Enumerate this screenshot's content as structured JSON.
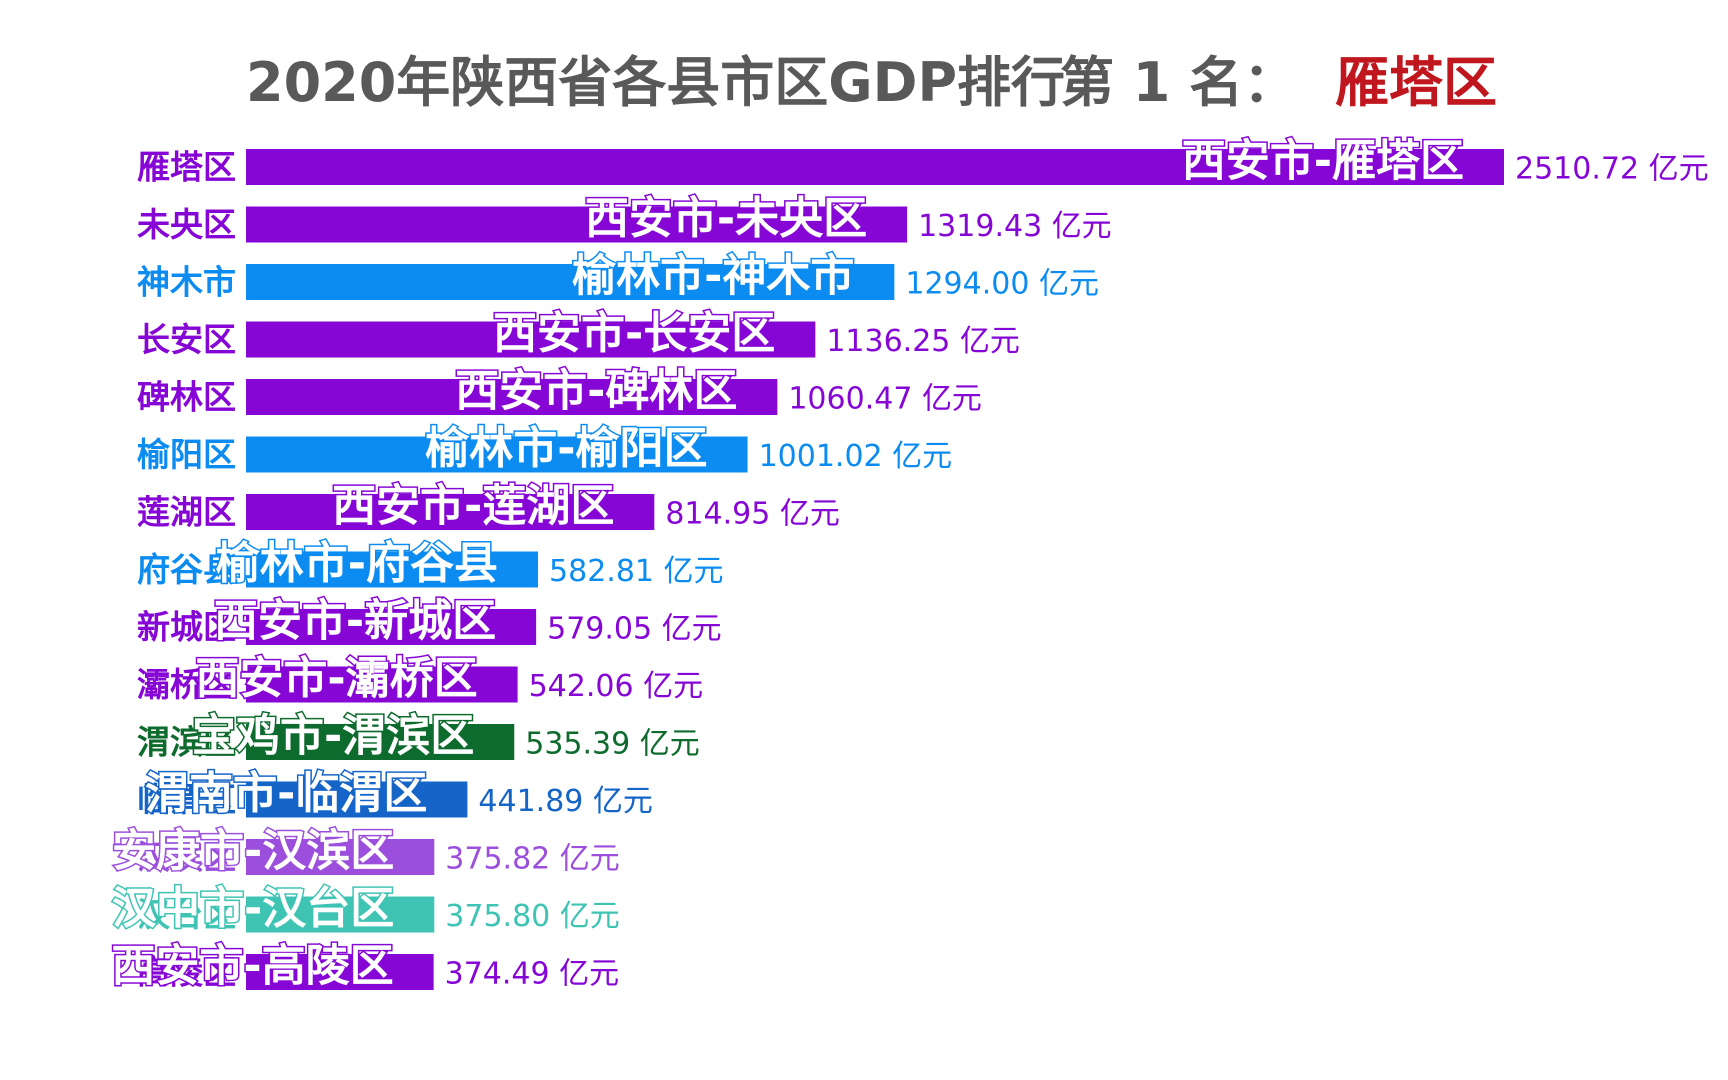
{
  "title": {
    "main": "2020年陕西省各县市区GDP排行",
    "rank": "第 1 名：",
    "current": "雁塔区"
  },
  "value_unit": "亿元",
  "colors": {
    "title": "#595959",
    "highlight": "#c0171e"
  },
  "chart_data": {
    "type": "bar",
    "orientation": "horizontal",
    "categories": [
      "雁塔区",
      "未央区",
      "神木市",
      "长安区",
      "碑林区",
      "榆阳区",
      "莲湖区",
      "府谷县",
      "新城区",
      "灞桥区",
      "渭滨区",
      "临渭区",
      "汉滨区",
      "汉台区",
      "高陵区"
    ],
    "bar_labels": [
      "西安市-雁塔区",
      "西安市-未央区",
      "榆林市-神木市",
      "西安市-长安区",
      "西安市-碑林区",
      "榆林市-榆阳区",
      "西安市-莲湖区",
      "榆林市-府谷县",
      "西安市-新城区",
      "西安市-灞桥区",
      "宝鸡市-渭滨区",
      "渭南市-临渭区",
      "安康市-汉滨区",
      "汉中市-汉台区",
      "西安市-高陵区"
    ],
    "values": [
      2510.72,
      1319.43,
      1294.0,
      1136.25,
      1060.47,
      1001.02,
      814.95,
      582.81,
      579.05,
      542.06,
      535.39,
      441.89,
      375.82,
      375.8,
      374.49
    ],
    "value_labels": [
      "2510.72 亿元",
      "1319.43 亿元",
      "1294.00 亿元",
      "1136.25 亿元",
      "1060.47 亿元",
      "1001.02 亿元",
      "814.95 亿元",
      "582.81 亿元",
      "579.05 亿元",
      "542.06 亿元",
      "535.39 亿元",
      "441.89 亿元",
      "375.82 亿元",
      "375.80 亿元",
      "374.49 亿元"
    ],
    "colors": [
      "#8606d6",
      "#8606d6",
      "#0c8cf0",
      "#8606d6",
      "#8606d6",
      "#0c8cf0",
      "#8606d6",
      "#0c8cf0",
      "#8606d6",
      "#8606d6",
      "#0e6b2e",
      "#1565c8",
      "#9b4fdc",
      "#3fc4b4",
      "#8606d6"
    ],
    "xlim": [
      0,
      2510.72
    ],
    "grid": false,
    "legend": "none"
  }
}
